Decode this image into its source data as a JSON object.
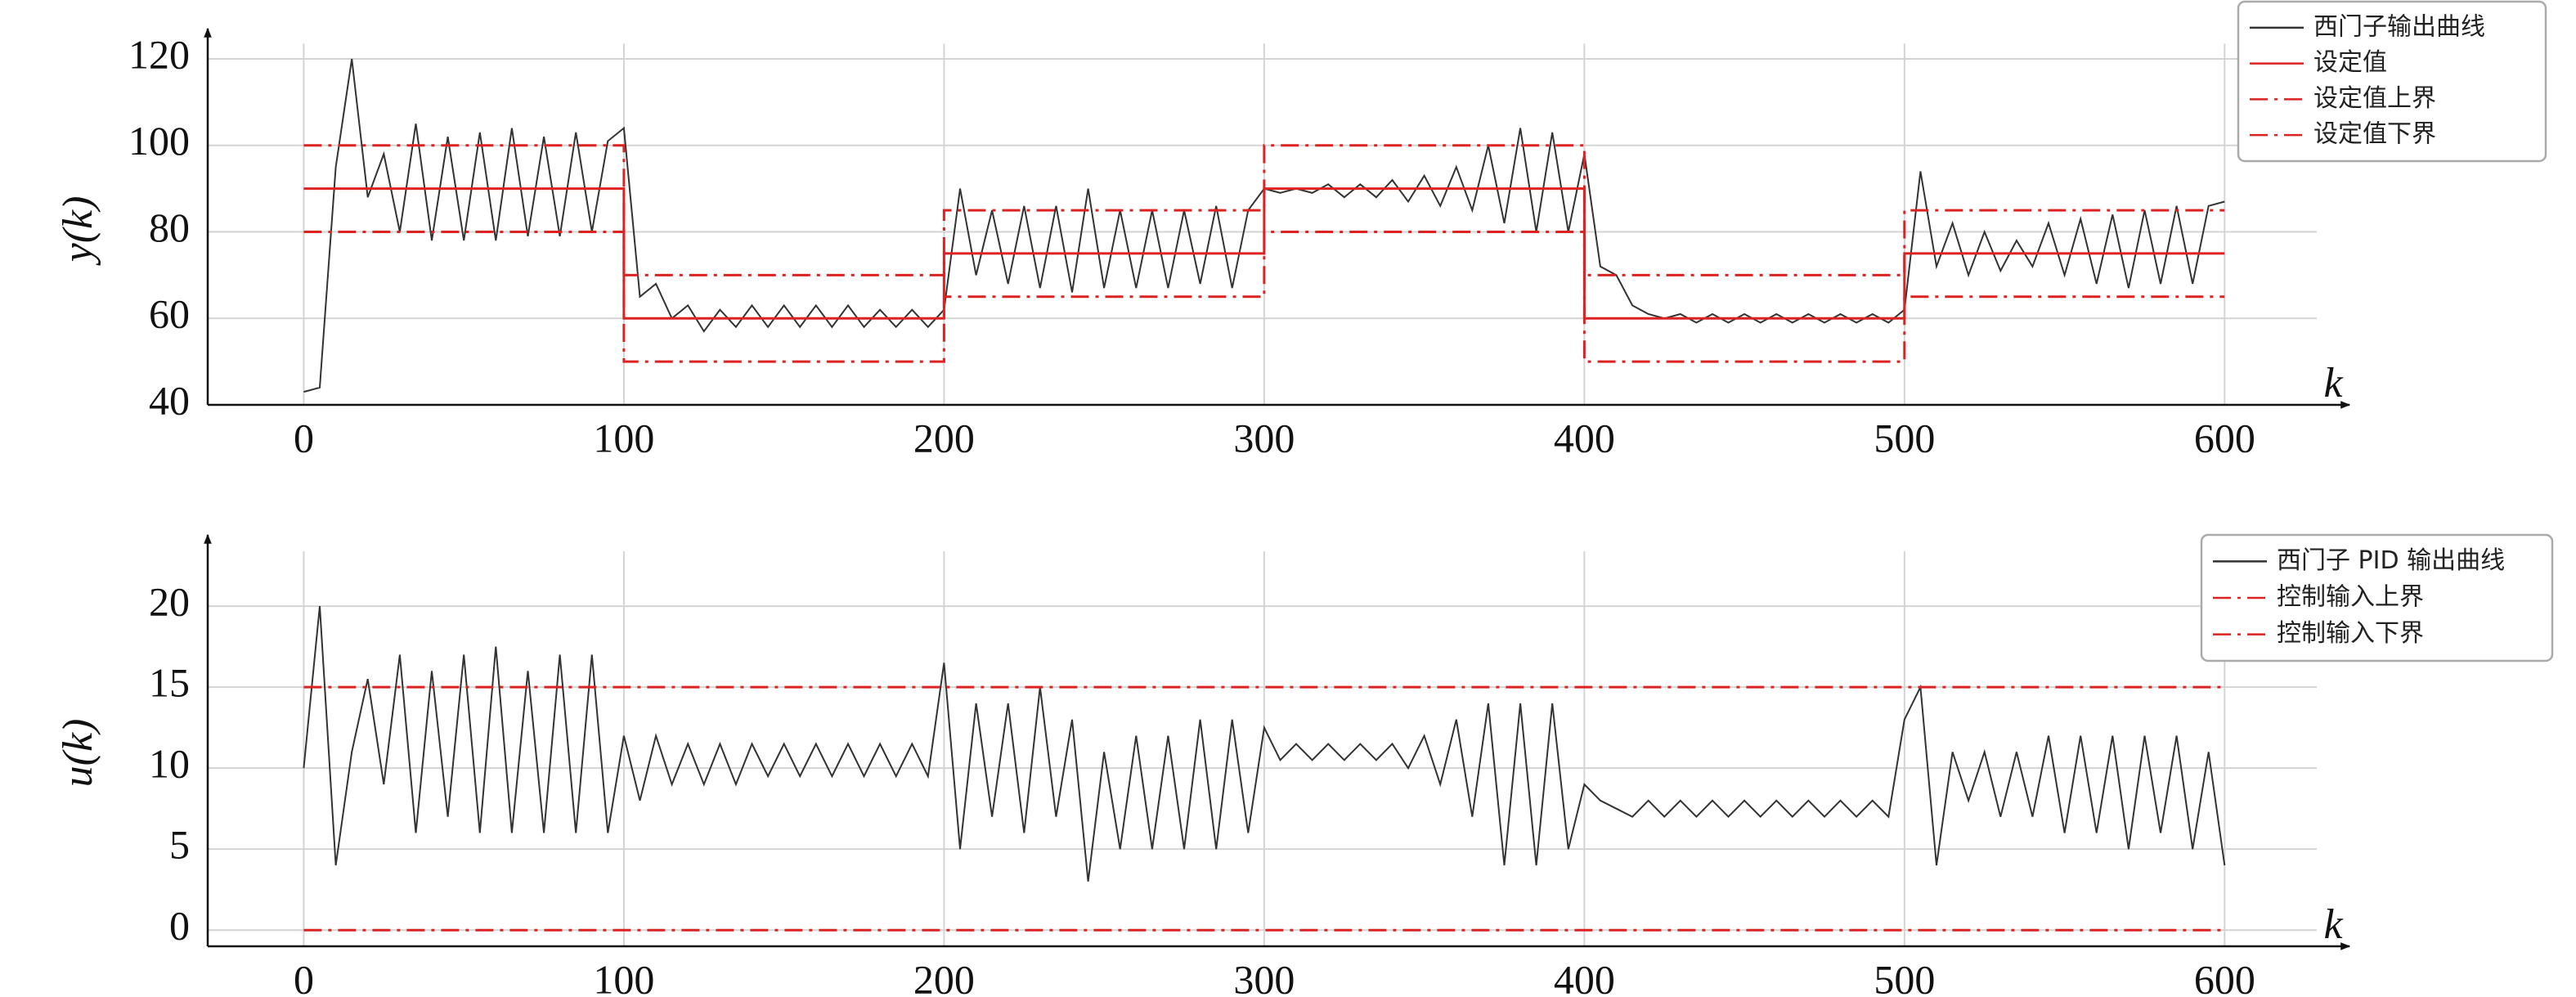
{
  "chart_data": [
    {
      "type": "line",
      "xlabel": "k",
      "ylabel": "y(k)",
      "xlim": [
        -30,
        639
      ],
      "ylim": [
        40,
        127
      ],
      "xticks": [
        0,
        100,
        200,
        300,
        400,
        500,
        600
      ],
      "yticks": [
        40,
        60,
        80,
        100,
        120
      ],
      "grid": true,
      "legend": "upper right",
      "series": [
        {
          "name": "西门子输出曲线",
          "color": "#333333",
          "linestyle": "solid",
          "x": [
            0,
            5,
            10,
            15,
            20,
            25,
            30,
            35,
            40,
            45,
            50,
            55,
            60,
            65,
            70,
            75,
            80,
            85,
            90,
            95,
            100,
            105,
            110,
            115,
            120,
            125,
            130,
            135,
            140,
            145,
            150,
            155,
            160,
            165,
            170,
            175,
            180,
            185,
            190,
            195,
            200,
            205,
            210,
            215,
            220,
            225,
            230,
            235,
            240,
            245,
            250,
            255,
            260,
            265,
            270,
            275,
            280,
            285,
            290,
            295,
            300,
            305,
            310,
            315,
            320,
            325,
            330,
            335,
            340,
            345,
            350,
            355,
            360,
            365,
            370,
            375,
            380,
            385,
            390,
            395,
            400,
            405,
            410,
            415,
            420,
            425,
            430,
            435,
            440,
            445,
            450,
            455,
            460,
            465,
            470,
            475,
            480,
            485,
            490,
            495,
            500,
            505,
            510,
            515,
            520,
            525,
            530,
            535,
            540,
            545,
            550,
            555,
            560,
            565,
            570,
            575,
            580,
            585,
            590,
            595,
            600
          ],
          "values": [
            43,
            44,
            95,
            120,
            88,
            98,
            80,
            105,
            78,
            102,
            78,
            103,
            78,
            104,
            79,
            102,
            79,
            103,
            80,
            101,
            104,
            65,
            68,
            60,
            63,
            57,
            62,
            58,
            63,
            58,
            63,
            58,
            63,
            58,
            63,
            58,
            62,
            58,
            62,
            58,
            62,
            90,
            70,
            85,
            68,
            86,
            67,
            86,
            66,
            90,
            67,
            85,
            67,
            85,
            67,
            85,
            68,
            86,
            67,
            85,
            90,
            89,
            90,
            89,
            91,
            88,
            91,
            88,
            92,
            87,
            93,
            86,
            95,
            85,
            100,
            82,
            104,
            80,
            103,
            80,
            98,
            72,
            70,
            63,
            61,
            60,
            61,
            59,
            61,
            59,
            61,
            59,
            61,
            59,
            61,
            59,
            61,
            59,
            61,
            59,
            62,
            94,
            72,
            82,
            70,
            80,
            71,
            78,
            72,
            82,
            70,
            83,
            68,
            84,
            67,
            85,
            68,
            86,
            68,
            86,
            87
          ]
        },
        {
          "name": "设定值",
          "color": "#dd2222",
          "linestyle": "solid",
          "x": [
            0,
            100,
            100,
            200,
            200,
            300,
            300,
            400,
            400,
            500,
            500,
            600
          ],
          "values": [
            90,
            90,
            60,
            60,
            75,
            75,
            90,
            90,
            60,
            60,
            75,
            75
          ]
        },
        {
          "name": "设定值上界",
          "color": "#dd2222",
          "linestyle": "dashdot",
          "x": [
            0,
            100,
            100,
            200,
            200,
            300,
            300,
            400,
            400,
            500,
            500,
            600
          ],
          "values": [
            100,
            100,
            70,
            70,
            85,
            85,
            100,
            100,
            70,
            70,
            85,
            85
          ]
        },
        {
          "name": "设定值下界",
          "color": "#dd2222",
          "linestyle": "dashdot",
          "x": [
            0,
            100,
            100,
            200,
            200,
            300,
            300,
            400,
            400,
            500,
            500,
            600
          ],
          "values": [
            80,
            80,
            50,
            50,
            65,
            65,
            80,
            80,
            50,
            50,
            65,
            65
          ]
        }
      ]
    },
    {
      "type": "line",
      "xlabel": "k",
      "ylabel": "u(k)",
      "xlim": [
        -30,
        639
      ],
      "ylim": [
        -1,
        24.4
      ],
      "xticks": [
        0,
        100,
        200,
        300,
        400,
        500,
        600
      ],
      "yticks": [
        0,
        5,
        10,
        15,
        20
      ],
      "grid": true,
      "legend": "upper right",
      "series": [
        {
          "name": "西门子 PID 输出曲线",
          "color": "#333333",
          "linestyle": "solid",
          "x": [
            0,
            5,
            10,
            15,
            20,
            25,
            30,
            35,
            40,
            45,
            50,
            55,
            60,
            65,
            70,
            75,
            80,
            85,
            90,
            95,
            100,
            105,
            110,
            115,
            120,
            125,
            130,
            135,
            140,
            145,
            150,
            155,
            160,
            165,
            170,
            175,
            180,
            185,
            190,
            195,
            200,
            205,
            210,
            215,
            220,
            225,
            230,
            235,
            240,
            245,
            250,
            255,
            260,
            265,
            270,
            275,
            280,
            285,
            290,
            295,
            300,
            305,
            310,
            315,
            320,
            325,
            330,
            335,
            340,
            345,
            350,
            355,
            360,
            365,
            370,
            375,
            380,
            385,
            390,
            395,
            400,
            405,
            410,
            415,
            420,
            425,
            430,
            435,
            440,
            445,
            450,
            455,
            460,
            465,
            470,
            475,
            480,
            485,
            490,
            495,
            500,
            505,
            510,
            515,
            520,
            525,
            530,
            535,
            540,
            545,
            550,
            555,
            560,
            565,
            570,
            575,
            580,
            585,
            590,
            595,
            600
          ],
          "values": [
            10,
            20,
            4,
            11,
            15.5,
            9,
            17,
            6,
            16,
            7,
            17,
            6,
            17.5,
            6,
            16,
            6,
            17,
            6,
            17,
            6,
            12,
            8,
            12,
            9,
            11.5,
            9,
            11.5,
            9,
            11.5,
            9.5,
            11.5,
            9.5,
            11.5,
            9.5,
            11.5,
            9.5,
            11.5,
            9.5,
            11.5,
            9.5,
            16.5,
            5,
            14,
            7,
            14,
            6,
            15,
            7,
            13,
            3,
            11,
            5,
            12,
            5,
            12,
            5,
            13,
            5,
            13,
            6,
            12.5,
            10.5,
            11.5,
            10.5,
            11.5,
            10.5,
            11.5,
            10.5,
            11.5,
            10,
            12,
            9,
            13,
            7,
            14,
            4,
            14,
            4,
            14,
            5,
            9,
            8,
            7.5,
            7,
            8,
            7,
            8,
            7,
            8,
            7,
            8,
            7,
            8,
            7,
            8,
            7,
            8,
            7,
            8,
            7,
            13,
            15,
            4,
            11,
            8,
            11,
            7,
            11,
            7,
            12,
            6,
            12,
            6,
            12,
            5,
            12,
            6,
            12,
            5,
            11,
            4
          ]
        },
        {
          "name": "控制输入上界",
          "color": "#dd2222",
          "linestyle": "dashdot",
          "x": [
            0,
            600
          ],
          "values": [
            15,
            15
          ]
        },
        {
          "name": "控制输入下界",
          "color": "#dd2222",
          "linestyle": "dashdot",
          "x": [
            0,
            600
          ],
          "values": [
            0,
            0
          ]
        }
      ]
    }
  ]
}
